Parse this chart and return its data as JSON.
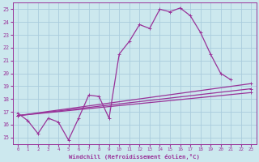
{
  "xlabel": "Windchill (Refroidissement éolien,°C)",
  "bg_color": "#cce8ee",
  "line_color": "#993399",
  "grid_color": "#aaccdd",
  "xticks": [
    0,
    1,
    2,
    3,
    4,
    5,
    6,
    7,
    8,
    9,
    10,
    11,
    12,
    13,
    14,
    15,
    16,
    17,
    18,
    19,
    20,
    21,
    22,
    23
  ],
  "yticks": [
    15,
    16,
    17,
    18,
    19,
    20,
    21,
    22,
    23,
    24,
    25
  ],
  "xlim": [
    -0.5,
    23.5
  ],
  "ylim": [
    14.5,
    25.5
  ],
  "curve_x": [
    0,
    1,
    2,
    3,
    4,
    5,
    6,
    7,
    8,
    9,
    10,
    11,
    12,
    13,
    14,
    15,
    16,
    17,
    18,
    19,
    20,
    21
  ],
  "curve_y": [
    16.9,
    16.3,
    15.3,
    16.5,
    16.2,
    14.8,
    16.5,
    18.3,
    18.2,
    16.5,
    21.5,
    22.5,
    23.8,
    23.5,
    25.0,
    24.8,
    25.1,
    24.5,
    23.2,
    21.5,
    20.0,
    19.5
  ],
  "line1_x": [
    0,
    23
  ],
  "line1_y": [
    16.7,
    19.2
  ],
  "line2_x": [
    0,
    23
  ],
  "line2_y": [
    16.7,
    18.8
  ],
  "line3_x": [
    0,
    23
  ],
  "line3_y": [
    16.7,
    18.5
  ]
}
